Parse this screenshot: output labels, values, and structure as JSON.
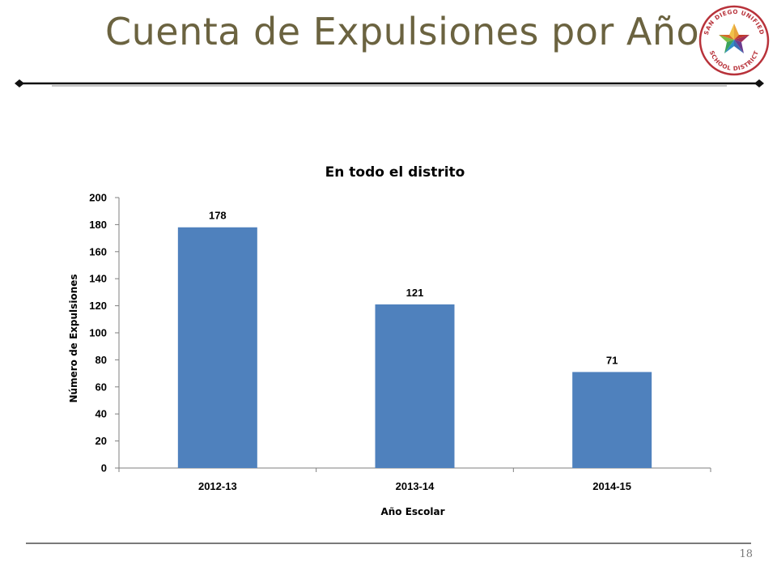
{
  "slide": {
    "title": "Cuenta de Expulsiones por Año",
    "page_number": "18",
    "logo": {
      "text": "SAN DIEGO UNIFIED SCHOOL DISTRICT",
      "icon": "star-logo-icon"
    }
  },
  "colors": {
    "title": "#6b6340",
    "bar": "#4f81bd",
    "axis": "#7f7f7f",
    "rule": "#111111"
  },
  "chart_data": {
    "type": "bar",
    "title": "En todo el distrito",
    "xlabel": "Año Escolar",
    "ylabel": "Número de Expulsiones",
    "categories": [
      "2012-13",
      "2013-14",
      "2014-15"
    ],
    "values": [
      178,
      121,
      71
    ],
    "data_labels": [
      "178",
      "121",
      "71"
    ],
    "y_ticks": [
      "0",
      "20",
      "40",
      "60",
      "80",
      "100",
      "120",
      "140",
      "160",
      "180",
      "200"
    ],
    "ylim": [
      0,
      200
    ],
    "grid": false,
    "legend": "none"
  }
}
